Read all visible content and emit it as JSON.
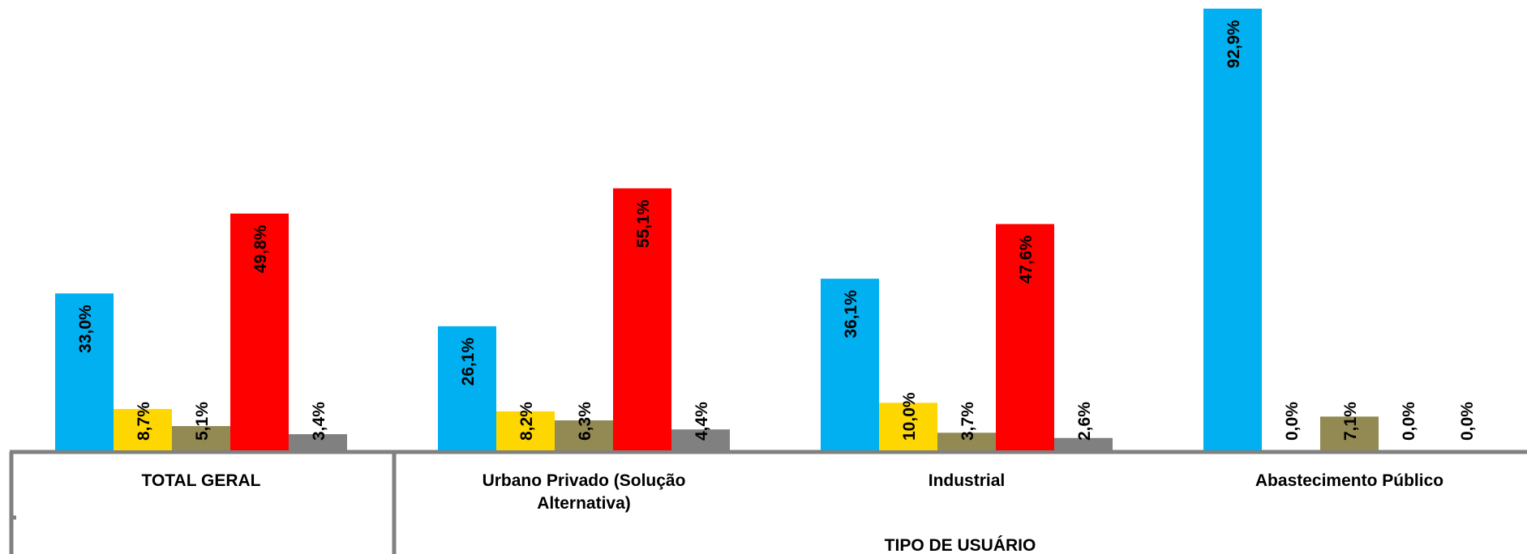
{
  "chart_data": {
    "type": "bar",
    "xlabel": "TIPO DE USUÁRIO",
    "categories": [
      "TOTAL GERAL",
      "Urbano Privado (Solução Alternativa)",
      "Industrial",
      "Abastecimento Público"
    ],
    "series": [
      {
        "color": "#00b0f0",
        "values": [
          33.0,
          26.1,
          36.1,
          92.9
        ],
        "value_labels": [
          "33,0%",
          "26,1%",
          "36,1%",
          "92,9%"
        ]
      },
      {
        "color": "#ffd700",
        "values": [
          8.7,
          8.2,
          10.0,
          0.0
        ],
        "value_labels": [
          "8,7%",
          "8,2%",
          "10,0%",
          "0,0%"
        ]
      },
      {
        "color": "#938953",
        "values": [
          5.1,
          6.3,
          3.7,
          7.1
        ],
        "value_labels": [
          "5,1%",
          "6,3%",
          "3,7%",
          "7,1%"
        ]
      },
      {
        "color": "#ff0000",
        "values": [
          49.8,
          55.1,
          47.6,
          0.0
        ],
        "value_labels": [
          "49,8%",
          "55,1%",
          "47,6%",
          "0,0%"
        ]
      },
      {
        "color": "#808080",
        "values": [
          3.4,
          4.4,
          2.6,
          0.0
        ],
        "value_labels": [
          "3,4%",
          "4,4%",
          "2,6%",
          "0,0%"
        ]
      }
    ]
  }
}
